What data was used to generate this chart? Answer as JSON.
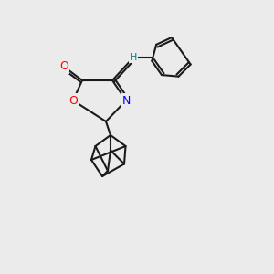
{
  "background_color": "#ebebeb",
  "line_color": "#1a1a1a",
  "line_width": 1.5,
  "atom_colors": {
    "O": "#ff0000",
    "N": "#0000ff",
    "H": "#008080",
    "C": "#1a1a1a"
  },
  "font_size": 9
}
